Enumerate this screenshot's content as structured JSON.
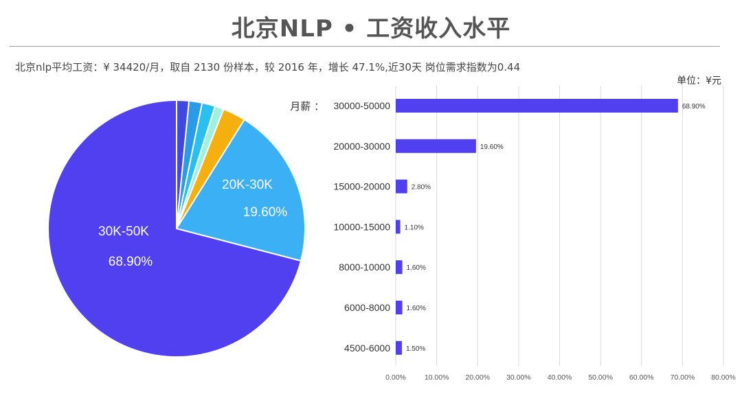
{
  "title": "北京NLP • 工资收入水平",
  "subtitle": "北京nlp平均工资：¥ 34420/月，取自 2130 份样本，较 2016 年，增长 47.1%,近30天 岗位需求指数为0.44",
  "colors": {
    "bar": "#5040f0",
    "slices": [
      "#5040f0",
      "#3cb0f5",
      "#f5b010",
      "#9ef0e0",
      "#28c0f0",
      "#2b9be8",
      "#3f48e0"
    ],
    "grid": "#d9d9d9"
  },
  "chart_data": [
    {
      "type": "pie",
      "title": "",
      "slices": [
        {
          "label": "30K-50K",
          "value": 68.9,
          "display": "68.90%",
          "labeled": true
        },
        {
          "label": "20K-30K",
          "value": 19.6,
          "display": "19.60%",
          "labeled": true
        },
        {
          "label": "15000-20000",
          "value": 2.8,
          "labeled": false
        },
        {
          "label": "10000-15000",
          "value": 1.1,
          "labeled": false
        },
        {
          "label": "8000-10000",
          "value": 1.6,
          "labeled": false
        },
        {
          "label": "6000-8000",
          "value": 1.6,
          "labeled": false
        },
        {
          "label": "4500-6000",
          "value": 1.5,
          "labeled": false
        }
      ]
    },
    {
      "type": "bar",
      "orientation": "horizontal",
      "unit_label": "单位：¥元",
      "category_title": "月薪 ：",
      "categories": [
        "30000-50000",
        "20000-30000",
        "15000-20000",
        "10000-15000",
        "8000-10000",
        "6000-8000",
        "4500-6000"
      ],
      "values": [
        68.9,
        19.6,
        2.8,
        1.1,
        1.6,
        1.6,
        1.5
      ],
      "value_labels": [
        "68.90%",
        "19.60%",
        "2.80%",
        "1.10%",
        "1.60%",
        "1.60%",
        "1.50%"
      ],
      "xlim": [
        0,
        80
      ],
      "xticks": [
        "0.00%",
        "10.00%",
        "20.00%",
        "30.00%",
        "40.00%",
        "50.00%",
        "60.00%",
        "70.00%",
        "80.00%"
      ],
      "grid": true
    }
  ]
}
